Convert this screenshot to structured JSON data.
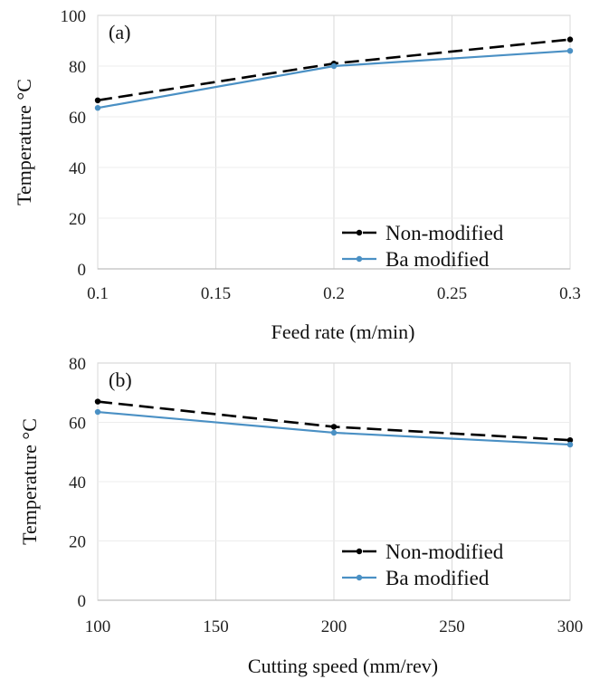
{
  "chart_data": [
    {
      "type": "line",
      "panel_label": "(a)",
      "xlabel": "Feed rate (m/min)",
      "ylabel": "Temperature °C",
      "x": [
        0.1,
        0.2,
        0.3
      ],
      "x_ticks": [
        "0.1",
        "0.15",
        "0.2",
        "0.25",
        "0.3"
      ],
      "x_tick_values": [
        0.1,
        0.15,
        0.2,
        0.25,
        0.3
      ],
      "xlim": [
        0.1,
        0.3
      ],
      "ylim": [
        0,
        100
      ],
      "y_ticks": [
        "0",
        "20",
        "40",
        "60",
        "80",
        "100"
      ],
      "y_tick_values": [
        0,
        20,
        40,
        60,
        80,
        100
      ],
      "grid": true,
      "legend_position": "bottom-right",
      "series": [
        {
          "name": "Non-modified",
          "values": [
            66.5,
            81,
            90.5
          ],
          "color": "#000000",
          "dash": true,
          "marker": "dot"
        },
        {
          "name": "Ba modified",
          "values": [
            63.5,
            80,
            86
          ],
          "color": "#4a90c4",
          "dash": false,
          "marker": "dot"
        }
      ]
    },
    {
      "type": "line",
      "panel_label": "(b)",
      "xlabel": "Cutting speed (mm/rev)",
      "ylabel": "Temperature °C",
      "x": [
        100,
        200,
        300
      ],
      "x_ticks": [
        "100",
        "150",
        "200",
        "250",
        "300"
      ],
      "x_tick_values": [
        100,
        150,
        200,
        250,
        300
      ],
      "xlim": [
        100,
        300
      ],
      "ylim": [
        0,
        80
      ],
      "y_ticks": [
        "0",
        "20",
        "40",
        "60",
        "80"
      ],
      "y_tick_values": [
        0,
        20,
        40,
        60,
        80
      ],
      "grid": true,
      "legend_position": "bottom-right",
      "series": [
        {
          "name": "Non-modified",
          "values": [
            67,
            58.5,
            54
          ],
          "color": "#000000",
          "dash": true,
          "marker": "dot"
        },
        {
          "name": "Ba modified",
          "values": [
            63.5,
            56.5,
            52.5
          ],
          "color": "#4a90c4",
          "dash": false,
          "marker": "dot"
        }
      ]
    }
  ]
}
